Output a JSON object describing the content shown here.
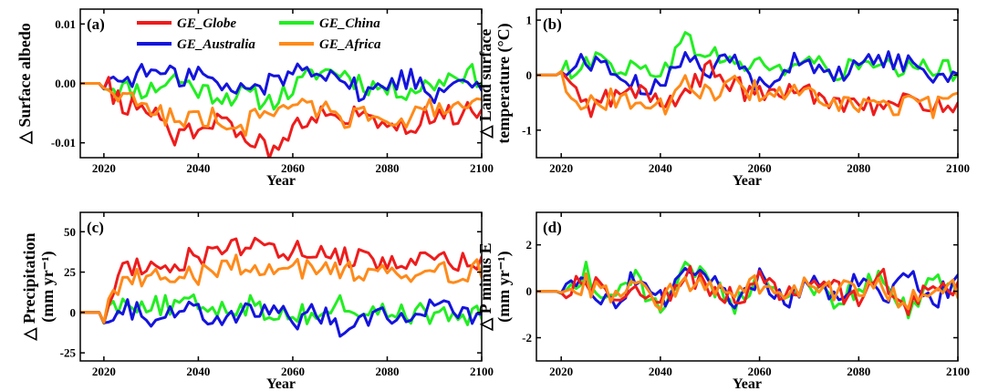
{
  "colors": {
    "GE_Globe": "#ee1c1c",
    "GE_China": "#22ee22",
    "GE_Australia": "#1414dd",
    "GE_Africa": "#ff8a1a"
  },
  "legend": [
    {
      "name": "GE_Globe",
      "color": "#ee1c1c"
    },
    {
      "name": "GE_China",
      "color": "#22ee22"
    },
    {
      "name": "GE_Australia",
      "color": "#1414dd"
    },
    {
      "name": "GE_Africa",
      "color": "#ff8a1a"
    }
  ],
  "chart_data": [
    {
      "type": "line",
      "panel_label": "(a)",
      "ylabel": "△ Surface albedo",
      "xlabel": "Year",
      "xlim": [
        2015,
        2100
      ],
      "ylim": [
        -0.0125,
        0.0125
      ],
      "xticks": [
        2020,
        2040,
        2060,
        2080,
        2100
      ],
      "yticks": [
        {
          "v": 0.01,
          "label": "0.01"
        },
        {
          "v": 0,
          "label": "0.00"
        },
        {
          "v": -0.01,
          "label": "-0.01"
        }
      ],
      "legend": "top",
      "x": [
        2015,
        2020,
        2025,
        2030,
        2035,
        2040,
        2045,
        2050,
        2055,
        2060,
        2065,
        2070,
        2075,
        2080,
        2085,
        2090,
        2095,
        2100
      ],
      "series": [
        {
          "name": "GE_Globe",
          "values": [
            0,
            0,
            -0.004,
            -0.005,
            -0.009,
            -0.007,
            -0.007,
            -0.009,
            -0.011,
            -0.007,
            -0.005,
            -0.006,
            -0.005,
            -0.006,
            -0.007,
            -0.005,
            -0.005,
            -0.005
          ]
        },
        {
          "name": "GE_China",
          "values": [
            0,
            0,
            -0.001,
            -0.001,
            0.001,
            -0.001,
            -0.002,
            -0.002,
            -0.003,
            -0.001,
            0.002,
            0.002,
            0.0,
            -0.001,
            -0.001,
            0.0,
            0.002,
            0.001
          ]
        },
        {
          "name": "GE_Australia",
          "values": [
            0,
            0,
            0.001,
            0.002,
            0.001,
            0.002,
            -0.001,
            -0.001,
            0.0,
            0.002,
            0.003,
            0.001,
            -0.002,
            0.0,
            0.001,
            -0.002,
            0.002,
            -0.001
          ]
        },
        {
          "name": "GE_Africa",
          "values": [
            0,
            0,
            -0.003,
            -0.004,
            -0.006,
            -0.006,
            -0.006,
            -0.007,
            -0.004,
            -0.004,
            -0.004,
            -0.006,
            -0.005,
            -0.005,
            -0.006,
            -0.004,
            -0.005,
            -0.004
          ]
        }
      ]
    },
    {
      "type": "line",
      "panel_label": "(b)",
      "ylabel": "△ Land surface",
      "ylabel2": "temperature (°C)",
      "xlabel": "Year",
      "xlim": [
        2015,
        2100
      ],
      "ylim": [
        -1.5,
        1.2
      ],
      "xticks": [
        2020,
        2040,
        2060,
        2080,
        2100
      ],
      "yticks": [
        {
          "v": 1,
          "label": "1"
        },
        {
          "v": 0,
          "label": "0"
        },
        {
          "v": -1,
          "label": "-1"
        }
      ],
      "x": [
        2015,
        2020,
        2025,
        2030,
        2035,
        2040,
        2045,
        2050,
        2055,
        2060,
        2065,
        2070,
        2075,
        2080,
        2085,
        2090,
        2095,
        2100
      ],
      "series": [
        {
          "name": "GE_Globe",
          "values": [
            0,
            0,
            -0.6,
            -0.4,
            -0.3,
            -0.5,
            -0.3,
            0.1,
            -0.2,
            -0.4,
            -0.3,
            -0.3,
            -0.5,
            -0.4,
            -0.6,
            -0.5,
            -0.5,
            -0.6
          ]
        },
        {
          "name": "GE_China",
          "values": [
            0,
            0,
            0.3,
            0.2,
            0.1,
            0.1,
            0.6,
            0.4,
            0.2,
            0.2,
            0.1,
            0.3,
            0.0,
            0.2,
            0.1,
            0.1,
            0.1,
            0.1
          ]
        },
        {
          "name": "GE_Australia",
          "values": [
            0,
            0,
            0.3,
            0.1,
            -0.2,
            -0.3,
            0.5,
            0.1,
            0.3,
            -0.2,
            0.2,
            0.2,
            -0.1,
            0.3,
            0.3,
            0.2,
            0.0,
            0.0
          ]
        },
        {
          "name": "GE_Africa",
          "values": [
            0,
            0,
            -0.6,
            -0.4,
            -0.5,
            -0.6,
            -0.2,
            -0.3,
            -0.2,
            -0.3,
            -0.3,
            -0.4,
            -0.6,
            -0.5,
            -0.6,
            -0.5,
            -0.6,
            -0.5
          ]
        }
      ]
    },
    {
      "type": "line",
      "panel_label": "(c)",
      "ylabel": "△ Precipitation",
      "ylabel2": "(mm yr⁻¹)",
      "xlabel": "Year",
      "xlim": [
        2015,
        2100
      ],
      "ylim": [
        -30,
        62
      ],
      "xticks": [
        2020,
        2040,
        2060,
        2080,
        2100
      ],
      "yticks": [
        {
          "v": 50,
          "label": "50"
        },
        {
          "v": 25,
          "label": "25"
        },
        {
          "v": 0,
          "label": "0"
        },
        {
          "v": -25,
          "label": "-25"
        }
      ],
      "x": [
        2015,
        2020,
        2025,
        2030,
        2035,
        2040,
        2045,
        2050,
        2055,
        2060,
        2065,
        2070,
        2075,
        2080,
        2085,
        2090,
        2095,
        2100
      ],
      "series": [
        {
          "name": "GE_Globe",
          "values": [
            0,
            0,
            30,
            27,
            32,
            35,
            37,
            40,
            42,
            38,
            37,
            35,
            33,
            32,
            30,
            32,
            30,
            30
          ]
        },
        {
          "name": "GE_China",
          "values": [
            0,
            0,
            8,
            5,
            3,
            5,
            3,
            5,
            0,
            0,
            -2,
            5,
            0,
            0,
            0,
            -2,
            -2,
            -3
          ]
        },
        {
          "name": "GE_Australia",
          "values": [
            0,
            0,
            2,
            -2,
            3,
            0,
            -2,
            2,
            0,
            -5,
            0,
            -8,
            -3,
            0,
            -3,
            3,
            0,
            -3
          ]
        },
        {
          "name": "GE_Africa",
          "values": [
            0,
            0,
            25,
            22,
            18,
            24,
            28,
            30,
            27,
            28,
            27,
            25,
            26,
            30,
            25,
            25,
            24,
            28
          ]
        }
      ]
    },
    {
      "type": "line",
      "panel_label": "(d)",
      "ylabel": "△ P minus E",
      "ylabel2": "(mm yr⁻¹)",
      "xlabel": "Year",
      "xlim": [
        2015,
        2100
      ],
      "ylim": [
        -3.0,
        3.4
      ],
      "xticks": [
        2020,
        2040,
        2060,
        2080,
        2100
      ],
      "yticks": [
        {
          "v": 2,
          "label": "2"
        },
        {
          "v": 0,
          "label": "0"
        },
        {
          "v": -2,
          "label": "-2"
        }
      ],
      "x": [
        2015,
        2020,
        2025,
        2030,
        2035,
        2040,
        2045,
        2050,
        2055,
        2060,
        2065,
        2070,
        2075,
        2080,
        2085,
        2090,
        2095,
        2100
      ],
      "series": [
        {
          "name": "GE_Globe",
          "values": [
            0,
            0,
            0.5,
            -0.4,
            0.3,
            -0.5,
            0.8,
            0.2,
            -0.3,
            0.4,
            -0.2,
            0.3,
            0.0,
            -0.3,
            0.5,
            -0.8,
            0.4,
            0.0
          ]
        },
        {
          "name": "GE_China",
          "values": [
            0,
            0,
            0.8,
            -0.6,
            0.5,
            -0.8,
            1.2,
            0.3,
            -0.5,
            0.5,
            -0.3,
            0.5,
            -0.8,
            0.3,
            0.6,
            -1.0,
            0.6,
            -0.3
          ]
        },
        {
          "name": "GE_Australia",
          "values": [
            0,
            0,
            0.4,
            -0.5,
            0.6,
            -0.4,
            0.6,
            0.5,
            -0.4,
            0.6,
            -0.5,
            0.4,
            -0.3,
            0.5,
            -0.5,
            0.8,
            -0.4,
            0.5
          ]
        },
        {
          "name": "GE_Africa",
          "values": [
            0,
            0,
            0.3,
            -0.3,
            0.2,
            -0.4,
            0.5,
            0.1,
            -0.2,
            0.3,
            -0.2,
            0.2,
            -0.1,
            0.2,
            0.2,
            -0.5,
            0.2,
            0.1
          ]
        }
      ]
    }
  ]
}
